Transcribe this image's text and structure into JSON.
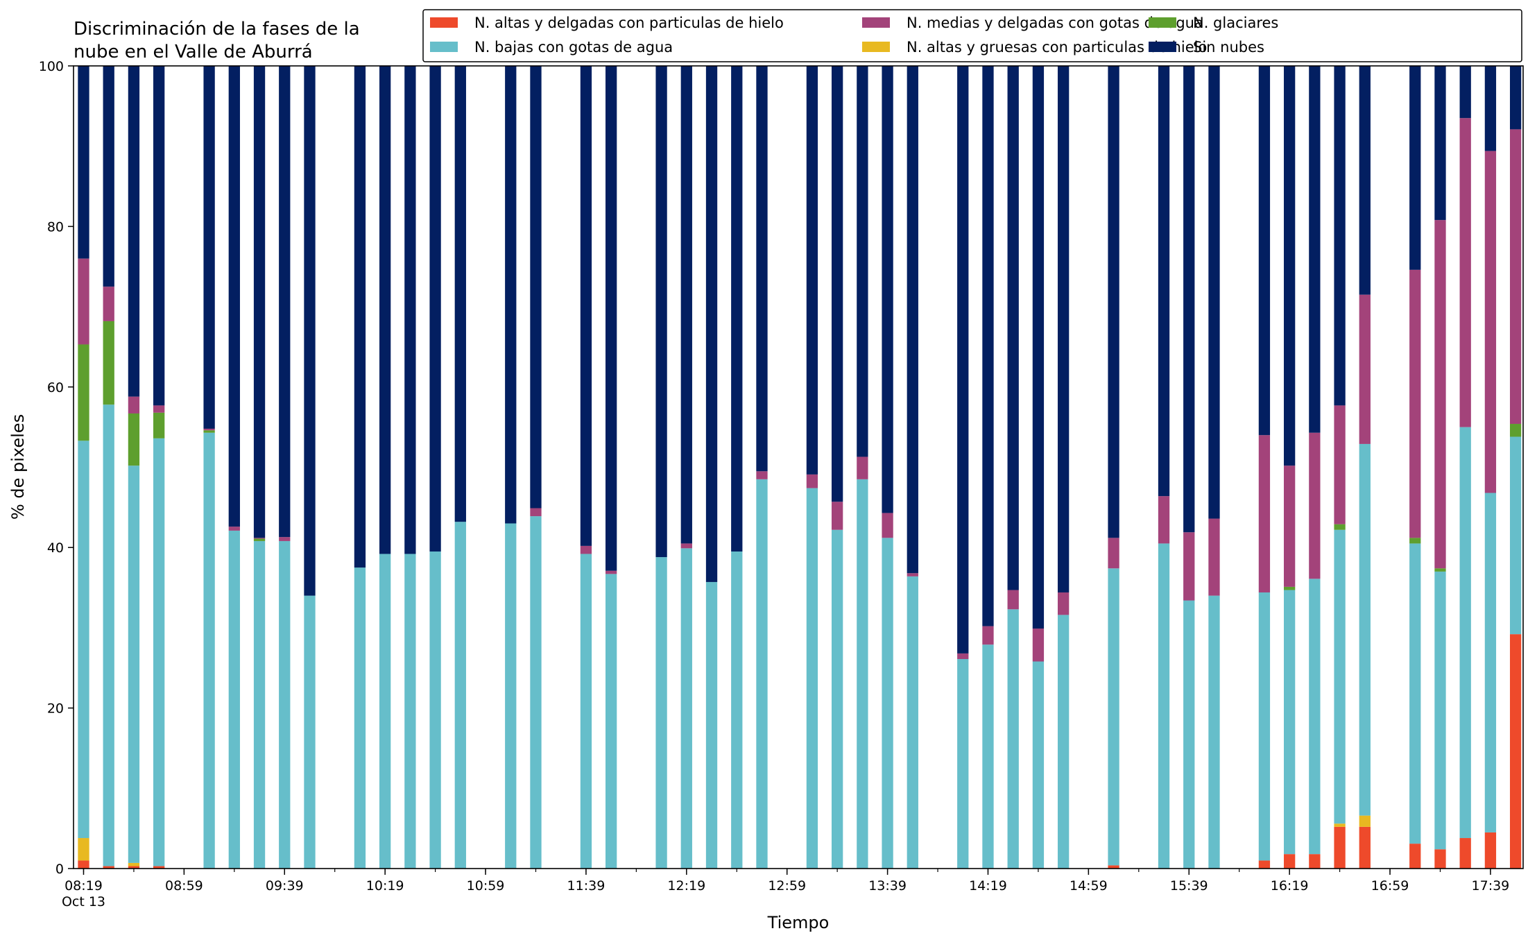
{
  "chart_data": {
    "type": "bar",
    "stacked": true,
    "title": "Discriminación de la fases de la\nnube en el Valle de Aburrá",
    "xlabel": "Tiempo",
    "ylabel": "% de pixeles",
    "ylim": [
      0,
      100
    ],
    "yticks": [
      "0",
      "20",
      "40",
      "60",
      "80",
      "100"
    ],
    "grid": false,
    "legend_position": "top-right",
    "x_major_ticks": [
      {
        "label": "08:19",
        "minute": 499,
        "sublabel": "Oct 13"
      },
      {
        "label": "08:59",
        "minute": 539
      },
      {
        "label": "09:39",
        "minute": 579
      },
      {
        "label": "10:19",
        "minute": 619
      },
      {
        "label": "10:59",
        "minute": 659
      },
      {
        "label": "11:39",
        "minute": 699
      },
      {
        "label": "12:19",
        "minute": 739
      },
      {
        "label": "12:59",
        "minute": 779
      },
      {
        "label": "13:39",
        "minute": 819
      },
      {
        "label": "14:19",
        "minute": 859
      },
      {
        "label": "14:59",
        "minute": 899
      },
      {
        "label": "15:39",
        "minute": 939
      },
      {
        "label": "16:19",
        "minute": 979
      },
      {
        "label": "16:59",
        "minute": 1019
      },
      {
        "label": "17:39",
        "minute": 1059
      }
    ],
    "x_minute_range": [
      495,
      1072
    ],
    "bar_width_minutes": 4.5,
    "series": [
      {
        "name": "N. altas y delgadas con particulas de hielo",
        "color": "#EE4A2B"
      },
      {
        "name": "N. altas y gruesas con particulas de hielo",
        "color": "#E8B921"
      },
      {
        "name": "N. bajas con gotas de agua",
        "color": "#66BECA"
      },
      {
        "name": "N. glaciares",
        "color": "#5E9F2E"
      },
      {
        "name": "N. medias y delgadas con gotas de agua",
        "color": "#A3437A"
      },
      {
        "name": "Sin nubes",
        "color": "#031F61"
      }
    ],
    "legend_order": [
      0,
      2,
      4,
      1,
      3,
      5
    ],
    "times": [
      "08:19",
      "08:29",
      "08:39",
      "08:49",
      "09:09",
      "09:19",
      "09:29",
      "09:39",
      "09:49",
      "10:09",
      "10:19",
      "10:29",
      "10:39",
      "10:49",
      "11:09",
      "11:19",
      "11:39",
      "11:49",
      "12:09",
      "12:19",
      "12:29",
      "12:39",
      "12:49",
      "13:09",
      "13:19",
      "13:29",
      "13:39",
      "13:49",
      "14:09",
      "14:19",
      "14:29",
      "14:39",
      "14:49",
      "15:09",
      "15:29",
      "15:39",
      "15:49",
      "16:09",
      "16:19",
      "16:29",
      "16:39",
      "16:49",
      "17:09",
      "17:19",
      "17:29",
      "17:39",
      "17:49"
    ],
    "bars": [
      [
        1.0,
        2.8,
        49.5,
        12.0,
        10.7,
        24.0
      ],
      [
        0.3,
        0.0,
        57.5,
        10.4,
        4.3,
        27.5
      ],
      [
        0.3,
        0.4,
        49.5,
        6.5,
        2.1,
        41.2
      ],
      [
        0.3,
        0.0,
        53.3,
        3.2,
        0.9,
        42.3
      ],
      [
        0.0,
        0.0,
        54.3,
        0.3,
        0.2,
        45.2
      ],
      [
        0.0,
        0.0,
        42.1,
        0.0,
        0.5,
        57.4
      ],
      [
        0.0,
        0.0,
        40.8,
        0.3,
        0.1,
        58.8
      ],
      [
        0.0,
        0.0,
        40.8,
        0.0,
        0.5,
        58.7
      ],
      [
        0.0,
        0.0,
        34.0,
        0.0,
        0.0,
        66.0
      ],
      [
        0.0,
        0.0,
        37.5,
        0.0,
        0.0,
        62.5
      ],
      [
        0.0,
        0.0,
        39.2,
        0.0,
        0.0,
        60.8
      ],
      [
        0.0,
        0.0,
        39.2,
        0.0,
        0.0,
        60.8
      ],
      [
        0.0,
        0.0,
        39.5,
        0.0,
        0.0,
        60.5
      ],
      [
        0.0,
        0.0,
        43.2,
        0.0,
        0.0,
        56.8
      ],
      [
        0.0,
        0.0,
        43.0,
        0.0,
        0.0,
        57.0
      ],
      [
        0.0,
        0.0,
        43.9,
        0.0,
        1.0,
        55.1
      ],
      [
        0.0,
        0.0,
        39.2,
        0.0,
        1.0,
        59.8
      ],
      [
        0.0,
        0.0,
        36.7,
        0.0,
        0.4,
        62.9
      ],
      [
        0.0,
        0.0,
        38.8,
        0.0,
        0.0,
        61.2
      ],
      [
        0.0,
        0.0,
        39.9,
        0.0,
        0.6,
        59.5
      ],
      [
        0.0,
        0.0,
        35.7,
        0.0,
        0.0,
        64.3
      ],
      [
        0.0,
        0.0,
        39.5,
        0.0,
        0.0,
        60.5
      ],
      [
        0.0,
        0.0,
        48.5,
        0.0,
        1.0,
        50.5
      ],
      [
        0.0,
        0.0,
        47.4,
        0.0,
        1.7,
        50.9
      ],
      [
        0.0,
        0.0,
        42.2,
        0.0,
        3.5,
        54.3
      ],
      [
        0.0,
        0.0,
        48.5,
        0.0,
        2.8,
        48.7
      ],
      [
        0.0,
        0.0,
        41.2,
        0.0,
        3.1,
        55.7
      ],
      [
        0.0,
        0.0,
        36.4,
        0.0,
        0.4,
        63.2
      ],
      [
        0.0,
        0.0,
        26.1,
        0.0,
        0.7,
        73.2
      ],
      [
        0.0,
        0.0,
        27.9,
        0.0,
        2.3,
        69.8
      ],
      [
        0.0,
        0.0,
        32.3,
        0.0,
        2.4,
        65.3
      ],
      [
        0.0,
        0.0,
        25.8,
        0.0,
        4.1,
        70.1
      ],
      [
        0.0,
        0.0,
        31.6,
        0.0,
        2.8,
        65.6
      ],
      [
        0.4,
        0.0,
        37.0,
        0.0,
        3.8,
        58.8
      ],
      [
        0.0,
        0.0,
        40.5,
        0.0,
        5.9,
        53.6
      ],
      [
        0.0,
        0.0,
        33.4,
        0.0,
        8.5,
        58.1
      ],
      [
        0.0,
        0.0,
        34.0,
        0.0,
        9.6,
        56.4
      ],
      [
        1.0,
        0.0,
        33.4,
        0.0,
        19.6,
        46.0
      ],
      [
        1.8,
        0.0,
        32.9,
        0.4,
        15.1,
        49.8
      ],
      [
        1.8,
        0.0,
        34.3,
        0.0,
        18.2,
        45.7
      ],
      [
        5.2,
        0.4,
        36.6,
        0.7,
        14.8,
        42.3
      ],
      [
        5.2,
        1.4,
        46.3,
        0.0,
        18.6,
        28.5
      ],
      [
        3.1,
        0.0,
        37.4,
        0.7,
        33.4,
        25.4
      ],
      [
        2.4,
        0.0,
        34.6,
        0.4,
        43.4,
        19.2
      ],
      [
        3.8,
        0.0,
        51.2,
        0.0,
        38.5,
        6.5
      ],
      [
        4.5,
        0.0,
        42.3,
        0.0,
        42.6,
        10.6
      ],
      [
        29.2,
        0.0,
        24.6,
        1.6,
        36.7,
        7.9
      ]
    ]
  }
}
